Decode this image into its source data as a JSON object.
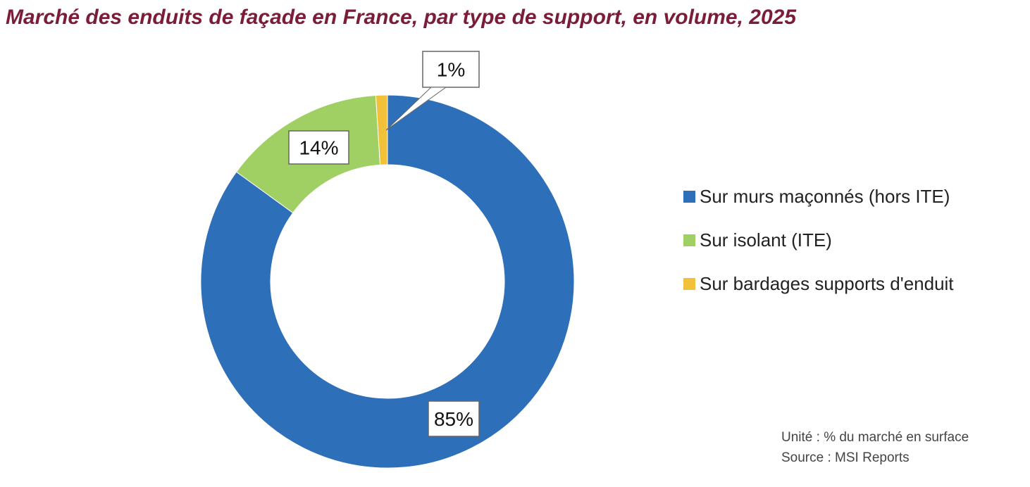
{
  "chart_data": {
    "type": "pie",
    "variant": "donut",
    "title": "Marché des enduits de façade en France, par type de support, en volume, 2025",
    "series": [
      {
        "name": "Sur murs maçonnés (hors ITE)",
        "value": 85,
        "label": "85%",
        "color": "#2E6FB9"
      },
      {
        "name": "Sur isolant (ITE)",
        "value": 14,
        "label": "14%",
        "color": "#A0CF63"
      },
      {
        "name": "Sur bardages supports d'enduit",
        "value": 1,
        "label": "1%",
        "color": "#F2C13A"
      }
    ],
    "legend_position": "right",
    "notes": [
      "Unité : % du marché en surface",
      "Source : MSI Reports"
    ]
  }
}
